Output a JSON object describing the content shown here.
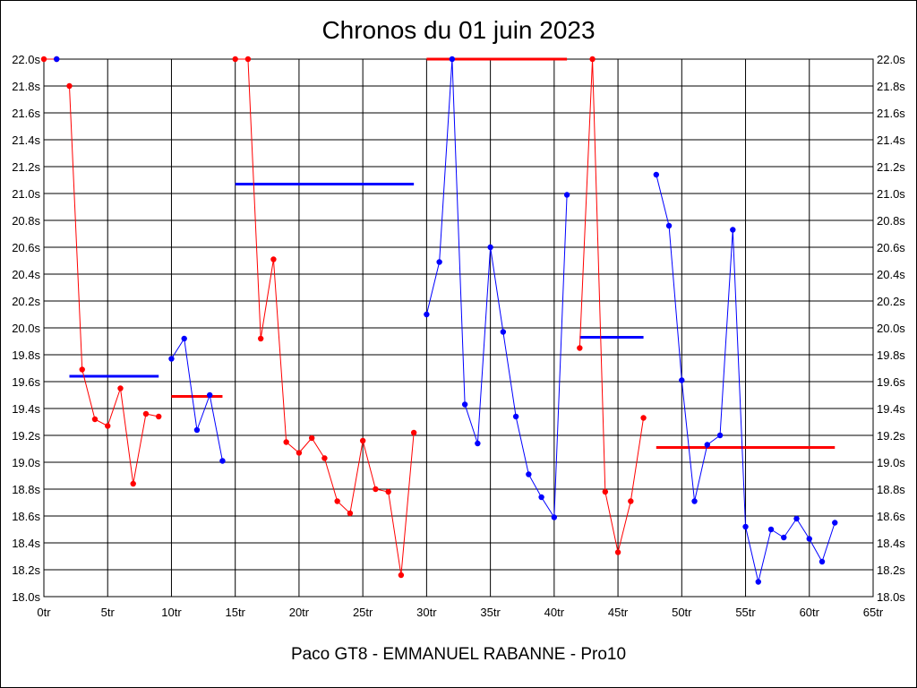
{
  "chart_data": {
    "type": "line",
    "title": "Chronos du 01 juin 2023",
    "caption": "Paco GT8 - EMMANUEL RABANNE - Pro10",
    "xlabel": "",
    "ylabel": "",
    "xlim": [
      0,
      65
    ],
    "ylim": [
      18.0,
      22.0
    ],
    "x_ticks": [
      0,
      5,
      10,
      15,
      20,
      25,
      30,
      35,
      40,
      45,
      50,
      55,
      60,
      65
    ],
    "x_tick_labels": [
      "0tr",
      "5tr",
      "10tr",
      "15tr",
      "20tr",
      "25tr",
      "30tr",
      "35tr",
      "40tr",
      "45tr",
      "50tr",
      "55tr",
      "60tr",
      "65tr"
    ],
    "y_ticks": [
      18.0,
      18.2,
      18.4,
      18.6,
      18.8,
      19.0,
      19.2,
      19.4,
      19.6,
      19.8,
      20.0,
      20.2,
      20.4,
      20.6,
      20.8,
      21.0,
      21.2,
      21.4,
      21.6,
      21.8,
      22.0
    ],
    "y_tick_labels": [
      "18.0s",
      "18.2s",
      "18.4s",
      "18.6s",
      "18.8s",
      "19.0s",
      "19.2s",
      "19.4s",
      "19.6s",
      "19.8s",
      "20.0s",
      "20.2s",
      "20.4s",
      "20.6s",
      "20.8s",
      "21.0s",
      "21.2s",
      "21.4s",
      "21.6s",
      "21.8s",
      "22.0s"
    ],
    "grid": true,
    "colors": {
      "red": "#ff0000",
      "blue": "#0000ff"
    },
    "series": [
      {
        "color": "red",
        "x": [
          0,
          1
        ],
        "y": [
          22.0,
          22.0
        ]
      },
      {
        "color": "blue",
        "x": [
          1
        ],
        "y": [
          22.0
        ]
      },
      {
        "color": "red",
        "x": [
          2,
          3,
          4,
          5,
          6,
          7,
          8,
          9
        ],
        "y": [
          21.8,
          19.69,
          19.32,
          19.27,
          19.55,
          18.84,
          19.36,
          19.34
        ]
      },
      {
        "color": "blue",
        "x": [
          10,
          11,
          12,
          13,
          14
        ],
        "y": [
          19.77,
          19.92,
          19.24,
          19.5,
          19.01
        ]
      },
      {
        "color": "red",
        "x": [
          15,
          16,
          17,
          18,
          19,
          20,
          21,
          22,
          23,
          24,
          25,
          26,
          27,
          28,
          29
        ],
        "y": [
          22.0,
          22.0,
          19.92,
          20.51,
          19.15,
          19.07,
          19.18,
          19.03,
          18.71,
          18.62,
          19.16,
          18.8,
          18.78,
          18.16,
          19.22
        ]
      },
      {
        "color": "blue",
        "x": [
          30,
          31,
          32,
          33,
          34,
          35,
          36,
          37,
          38,
          39,
          40,
          41
        ],
        "y": [
          20.1,
          20.49,
          22.0,
          19.43,
          19.14,
          20.6,
          19.97,
          19.34,
          18.91,
          18.74,
          18.59,
          20.99
        ]
      },
      {
        "color": "red",
        "x": [
          42,
          43,
          44,
          45,
          46,
          47
        ],
        "y": [
          19.85,
          22.0,
          18.78,
          18.33,
          18.71,
          19.33
        ]
      },
      {
        "color": "blue",
        "x": [
          48,
          49,
          50,
          51,
          52,
          53,
          54,
          55,
          56,
          57,
          58,
          59,
          60,
          61,
          62
        ],
        "y": [
          21.14,
          20.76,
          19.61,
          18.71,
          19.13,
          19.2,
          20.73,
          18.52,
          18.11,
          18.5,
          18.44,
          18.58,
          18.43,
          18.26,
          18.55
        ]
      }
    ],
    "averages": [
      {
        "color": "blue",
        "x": [
          2,
          9
        ],
        "y": 19.64
      },
      {
        "color": "red",
        "x": [
          10,
          14
        ],
        "y": 19.49
      },
      {
        "color": "blue",
        "x": [
          15,
          29
        ],
        "y": 21.07
      },
      {
        "color": "red",
        "x": [
          30,
          41
        ],
        "y": 22.0
      },
      {
        "color": "blue",
        "x": [
          42,
          47
        ],
        "y": 19.93
      },
      {
        "color": "red",
        "x": [
          48,
          62
        ],
        "y": 19.11
      }
    ]
  }
}
